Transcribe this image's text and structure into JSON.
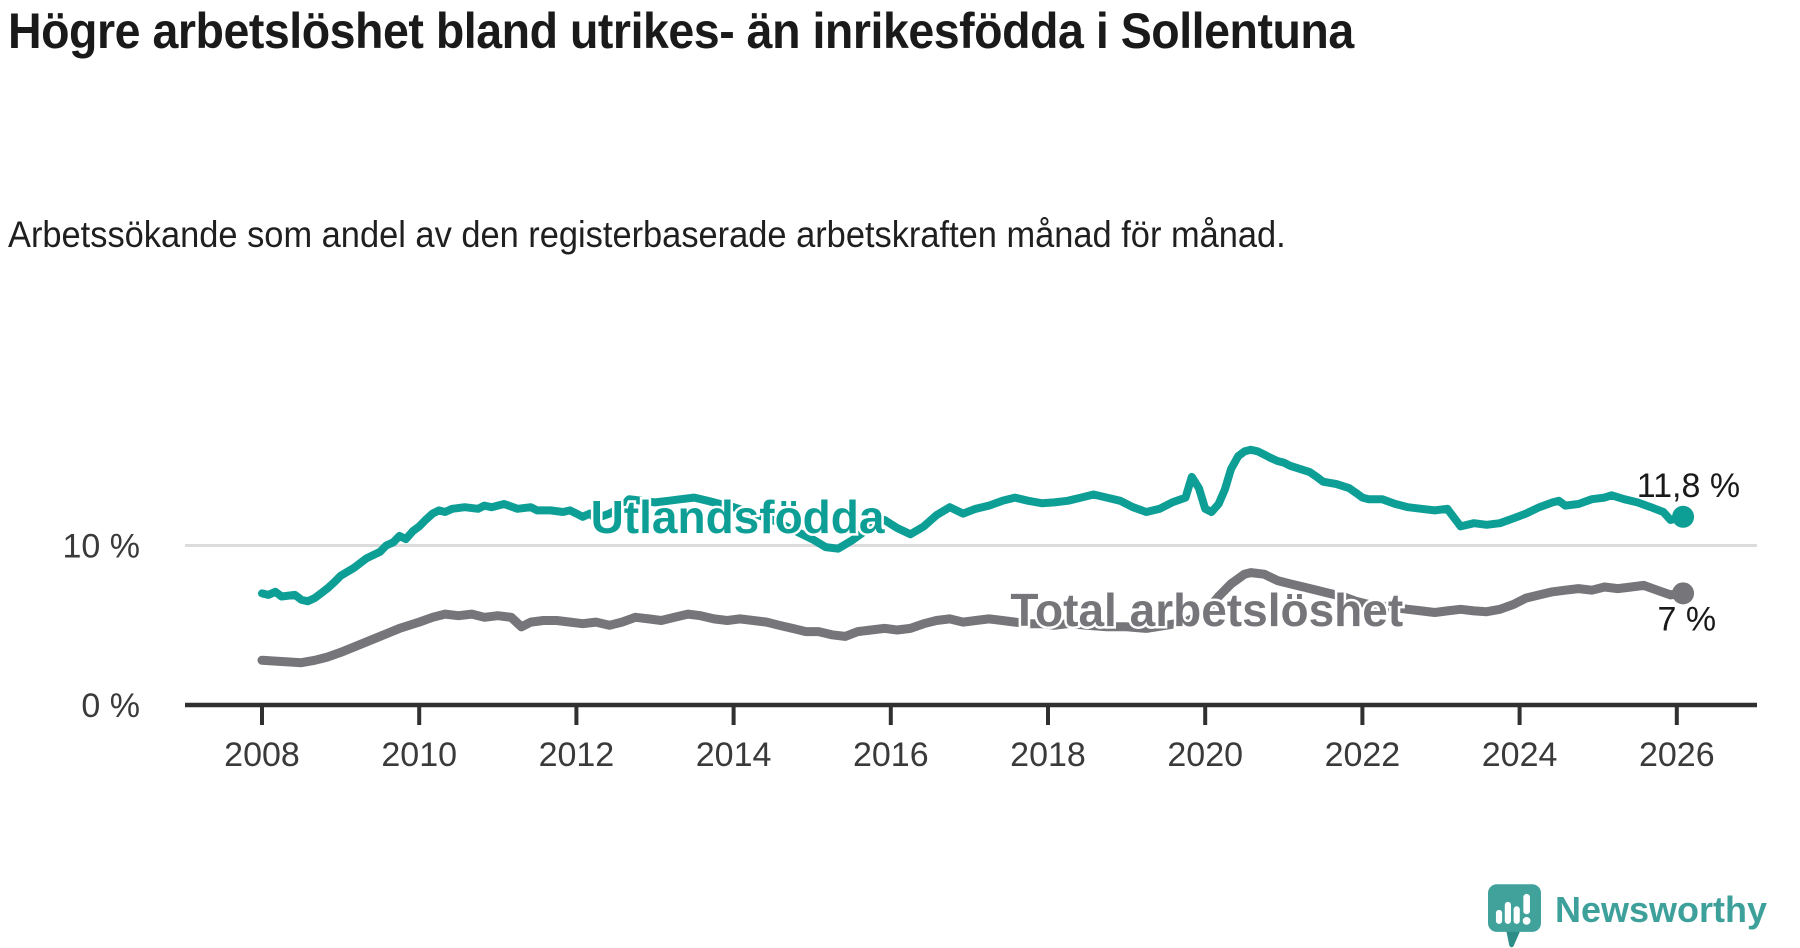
{
  "header": {
    "title": "Högre arbetslöshet bland utrikes- än inrikesfödda i Sollentuna",
    "subtitle": "Arbetssökande som andel av den registerbaserade arbetskraften månad för månad."
  },
  "footer": {
    "brand": "Newsworthy",
    "logo_icon": "newsworthy-speech-bubble-bar-chart-icon"
  },
  "colors": {
    "background": "#ffffff",
    "title_text": "#1a1a1a",
    "axis_line": "#303030",
    "axis_label": "#3a3a3a",
    "gridline": "#dcdcdc",
    "series_foreign_born": "#0d9f96",
    "series_total": "#76767a",
    "value_label_text": "#1a1a1a",
    "brand_teal": "#3da09a"
  },
  "chart_data": {
    "type": "line",
    "title": "Högre arbetslöshet bland utrikes- än inrikesfödda i Sollentuna",
    "subtitle": "Arbetssökande som andel av den registerbaserade arbetskraften månad för månad.",
    "xlabel": "",
    "ylabel": "",
    "y_unit": "%",
    "x_range": [
      2007.0,
      2027.0
    ],
    "y_range_drawn": [
      0,
      17
    ],
    "grid": "single horizontal gridline at 10 %",
    "legend_position": "inline labels on lines, end-value labels at right",
    "x_axis": {
      "tick_values": [
        2008,
        2010,
        2012,
        2014,
        2016,
        2018,
        2020,
        2022,
        2024,
        2026
      ],
      "tick_labels": [
        "2008",
        "2010",
        "2012",
        "2014",
        "2016",
        "2018",
        "2020",
        "2022",
        "2024",
        "2026"
      ]
    },
    "y_axis": {
      "ticks": [
        {
          "value": 0,
          "label": "0 %"
        },
        {
          "value": 10,
          "label": "10 %"
        }
      ],
      "gridlines": [
        10
      ]
    },
    "series": [
      {
        "id": "utlandsfodda",
        "name": "Utlandsfödda",
        "color": "#0d9f96",
        "stroke_width": 8,
        "end_value": 11.8,
        "end_label": "11,8 %",
        "end_label_offset": {
          "dx": 57,
          "dy": -20,
          "anchor": "end"
        },
        "label_pos": {
          "year": 2014.05,
          "value": 11.8
        },
        "points": [
          [
            2008.0,
            7.0
          ],
          [
            2008.08,
            6.9
          ],
          [
            2008.17,
            7.1
          ],
          [
            2008.25,
            6.8
          ],
          [
            2008.42,
            6.9
          ],
          [
            2008.5,
            6.6
          ],
          [
            2008.58,
            6.5
          ],
          [
            2008.67,
            6.7
          ],
          [
            2008.75,
            7.0
          ],
          [
            2008.83,
            7.3
          ],
          [
            2008.92,
            7.7
          ],
          [
            2009.0,
            8.1
          ],
          [
            2009.17,
            8.6
          ],
          [
            2009.33,
            9.2
          ],
          [
            2009.5,
            9.6
          ],
          [
            2009.58,
            10.0
          ],
          [
            2009.67,
            10.2
          ],
          [
            2009.75,
            10.6
          ],
          [
            2009.83,
            10.4
          ],
          [
            2009.92,
            10.9
          ],
          [
            2010.0,
            11.2
          ],
          [
            2010.08,
            11.6
          ],
          [
            2010.17,
            12.0
          ],
          [
            2010.25,
            12.2
          ],
          [
            2010.33,
            12.1
          ],
          [
            2010.42,
            12.3
          ],
          [
            2010.58,
            12.4
          ],
          [
            2010.75,
            12.3
          ],
          [
            2010.83,
            12.5
          ],
          [
            2010.92,
            12.4
          ],
          [
            2011.08,
            12.6
          ],
          [
            2011.25,
            12.3
          ],
          [
            2011.42,
            12.4
          ],
          [
            2011.5,
            12.2
          ],
          [
            2011.67,
            12.2
          ],
          [
            2011.83,
            12.1
          ],
          [
            2011.92,
            12.2
          ],
          [
            2012.0,
            12.0
          ],
          [
            2012.08,
            11.8
          ],
          [
            2012.17,
            12.0
          ],
          [
            2012.25,
            11.7
          ],
          [
            2012.42,
            12.0
          ],
          [
            2012.58,
            12.4
          ],
          [
            2012.67,
            12.9
          ],
          [
            2012.83,
            12.8
          ],
          [
            2013.0,
            12.7
          ],
          [
            2013.17,
            12.8
          ],
          [
            2013.33,
            12.9
          ],
          [
            2013.5,
            13.0
          ],
          [
            2013.67,
            12.8
          ],
          [
            2013.83,
            12.6
          ],
          [
            2014.0,
            12.4
          ],
          [
            2014.25,
            12.0
          ],
          [
            2014.5,
            11.6
          ],
          [
            2014.75,
            11.0
          ],
          [
            2015.0,
            10.4
          ],
          [
            2015.17,
            9.9
          ],
          [
            2015.33,
            9.8
          ],
          [
            2015.5,
            10.3
          ],
          [
            2015.67,
            10.9
          ],
          [
            2015.83,
            11.4
          ],
          [
            2015.92,
            11.6
          ],
          [
            2016.08,
            11.1
          ],
          [
            2016.25,
            10.7
          ],
          [
            2016.42,
            11.2
          ],
          [
            2016.58,
            11.9
          ],
          [
            2016.75,
            12.4
          ],
          [
            2016.92,
            12.0
          ],
          [
            2017.08,
            12.3
          ],
          [
            2017.25,
            12.5
          ],
          [
            2017.42,
            12.8
          ],
          [
            2017.58,
            13.0
          ],
          [
            2017.75,
            12.8
          ],
          [
            2017.92,
            12.65
          ],
          [
            2018.08,
            12.7
          ],
          [
            2018.25,
            12.8
          ],
          [
            2018.42,
            13.0
          ],
          [
            2018.58,
            13.2
          ],
          [
            2018.75,
            13.0
          ],
          [
            2018.92,
            12.8
          ],
          [
            2019.08,
            12.4
          ],
          [
            2019.25,
            12.1
          ],
          [
            2019.42,
            12.3
          ],
          [
            2019.58,
            12.7
          ],
          [
            2019.75,
            13.0
          ],
          [
            2019.83,
            14.3
          ],
          [
            2019.92,
            13.6
          ],
          [
            2020.0,
            12.3
          ],
          [
            2020.08,
            12.1
          ],
          [
            2020.17,
            12.6
          ],
          [
            2020.25,
            13.5
          ],
          [
            2020.33,
            14.8
          ],
          [
            2020.42,
            15.6
          ],
          [
            2020.5,
            15.9
          ],
          [
            2020.58,
            16.0
          ],
          [
            2020.67,
            15.9
          ],
          [
            2020.75,
            15.7
          ],
          [
            2020.83,
            15.5
          ],
          [
            2020.92,
            15.3
          ],
          [
            2021.0,
            15.2
          ],
          [
            2021.08,
            15.0
          ],
          [
            2021.17,
            14.85
          ],
          [
            2021.33,
            14.6
          ],
          [
            2021.42,
            14.3
          ],
          [
            2021.5,
            14.0
          ],
          [
            2021.67,
            13.85
          ],
          [
            2021.83,
            13.6
          ],
          [
            2021.92,
            13.3
          ],
          [
            2022.0,
            13.0
          ],
          [
            2022.08,
            12.9
          ],
          [
            2022.25,
            12.9
          ],
          [
            2022.42,
            12.6
          ],
          [
            2022.58,
            12.4
          ],
          [
            2022.75,
            12.3
          ],
          [
            2022.92,
            12.2
          ],
          [
            2023.08,
            12.3
          ],
          [
            2023.25,
            11.2
          ],
          [
            2023.42,
            11.4
          ],
          [
            2023.58,
            11.3
          ],
          [
            2023.75,
            11.4
          ],
          [
            2023.92,
            11.7
          ],
          [
            2024.08,
            12.0
          ],
          [
            2024.25,
            12.4
          ],
          [
            2024.42,
            12.7
          ],
          [
            2024.5,
            12.8
          ],
          [
            2024.58,
            12.5
          ],
          [
            2024.75,
            12.6
          ],
          [
            2024.92,
            12.9
          ],
          [
            2025.08,
            13.0
          ],
          [
            2025.17,
            13.15
          ],
          [
            2025.33,
            12.9
          ],
          [
            2025.5,
            12.7
          ],
          [
            2025.67,
            12.4
          ],
          [
            2025.83,
            12.1
          ],
          [
            2025.92,
            11.6
          ],
          [
            2026.08,
            11.8
          ]
        ]
      },
      {
        "id": "total",
        "name": "Total arbetslöshet",
        "color": "#76767a",
        "stroke_width": 9,
        "end_value": 7,
        "end_label": "7 %",
        "end_label_offset": {
          "dx": 33,
          "dy": 37,
          "anchor": "end"
        },
        "label_pos": {
          "year": 2020.02,
          "value": 5.95
        },
        "points": [
          [
            2008.0,
            2.8
          ],
          [
            2008.17,
            2.75
          ],
          [
            2008.33,
            2.7
          ],
          [
            2008.5,
            2.65
          ],
          [
            2008.67,
            2.8
          ],
          [
            2008.83,
            3.0
          ],
          [
            2009.0,
            3.3
          ],
          [
            2009.25,
            3.8
          ],
          [
            2009.5,
            4.3
          ],
          [
            2009.75,
            4.8
          ],
          [
            2010.0,
            5.2
          ],
          [
            2010.17,
            5.5
          ],
          [
            2010.33,
            5.7
          ],
          [
            2010.5,
            5.6
          ],
          [
            2010.67,
            5.7
          ],
          [
            2010.83,
            5.5
          ],
          [
            2011.0,
            5.6
          ],
          [
            2011.17,
            5.5
          ],
          [
            2011.3,
            4.9
          ],
          [
            2011.42,
            5.2
          ],
          [
            2011.58,
            5.3
          ],
          [
            2011.75,
            5.3
          ],
          [
            2011.92,
            5.2
          ],
          [
            2012.08,
            5.1
          ],
          [
            2012.25,
            5.2
          ],
          [
            2012.42,
            5.0
          ],
          [
            2012.58,
            5.2
          ],
          [
            2012.75,
            5.5
          ],
          [
            2012.92,
            5.4
          ],
          [
            2013.08,
            5.3
          ],
          [
            2013.25,
            5.5
          ],
          [
            2013.42,
            5.7
          ],
          [
            2013.58,
            5.6
          ],
          [
            2013.75,
            5.4
          ],
          [
            2013.92,
            5.3
          ],
          [
            2014.08,
            5.4
          ],
          [
            2014.25,
            5.3
          ],
          [
            2014.42,
            5.2
          ],
          [
            2014.58,
            5.0
          ],
          [
            2014.75,
            4.8
          ],
          [
            2014.92,
            4.6
          ],
          [
            2015.08,
            4.6
          ],
          [
            2015.25,
            4.4
          ],
          [
            2015.42,
            4.3
          ],
          [
            2015.58,
            4.6
          ],
          [
            2015.75,
            4.7
          ],
          [
            2015.92,
            4.8
          ],
          [
            2016.08,
            4.7
          ],
          [
            2016.25,
            4.8
          ],
          [
            2016.42,
            5.1
          ],
          [
            2016.58,
            5.3
          ],
          [
            2016.75,
            5.4
          ],
          [
            2016.92,
            5.2
          ],
          [
            2017.08,
            5.3
          ],
          [
            2017.25,
            5.4
          ],
          [
            2017.42,
            5.3
          ],
          [
            2017.58,
            5.2
          ],
          [
            2017.75,
            5.1
          ],
          [
            2017.92,
            5.1
          ],
          [
            2018.08,
            5.0
          ],
          [
            2018.25,
            5.1
          ],
          [
            2018.5,
            5.0
          ],
          [
            2018.75,
            4.9
          ],
          [
            2019.0,
            4.9
          ],
          [
            2019.25,
            4.8
          ],
          [
            2019.5,
            5.0
          ],
          [
            2019.75,
            5.2
          ],
          [
            2020.0,
            5.8
          ],
          [
            2020.17,
            6.8
          ],
          [
            2020.33,
            7.6
          ],
          [
            2020.5,
            8.2
          ],
          [
            2020.58,
            8.3
          ],
          [
            2020.75,
            8.2
          ],
          [
            2020.92,
            7.8
          ],
          [
            2021.08,
            7.6
          ],
          [
            2021.25,
            7.4
          ],
          [
            2021.42,
            7.2
          ],
          [
            2021.58,
            7.0
          ],
          [
            2021.75,
            6.8
          ],
          [
            2021.92,
            6.5
          ],
          [
            2022.08,
            6.3
          ],
          [
            2022.25,
            6.2
          ],
          [
            2022.42,
            6.1
          ],
          [
            2022.58,
            6.0
          ],
          [
            2022.75,
            5.9
          ],
          [
            2022.92,
            5.8
          ],
          [
            2023.08,
            5.9
          ],
          [
            2023.25,
            6.0
          ],
          [
            2023.42,
            5.9
          ],
          [
            2023.58,
            5.85
          ],
          [
            2023.75,
            6.0
          ],
          [
            2023.92,
            6.3
          ],
          [
            2024.08,
            6.7
          ],
          [
            2024.25,
            6.9
          ],
          [
            2024.42,
            7.1
          ],
          [
            2024.58,
            7.2
          ],
          [
            2024.75,
            7.3
          ],
          [
            2024.92,
            7.2
          ],
          [
            2025.08,
            7.4
          ],
          [
            2025.25,
            7.3
          ],
          [
            2025.42,
            7.4
          ],
          [
            2025.58,
            7.5
          ],
          [
            2025.75,
            7.2
          ],
          [
            2025.92,
            6.9
          ],
          [
            2026.08,
            7.0
          ]
        ]
      }
    ]
  }
}
